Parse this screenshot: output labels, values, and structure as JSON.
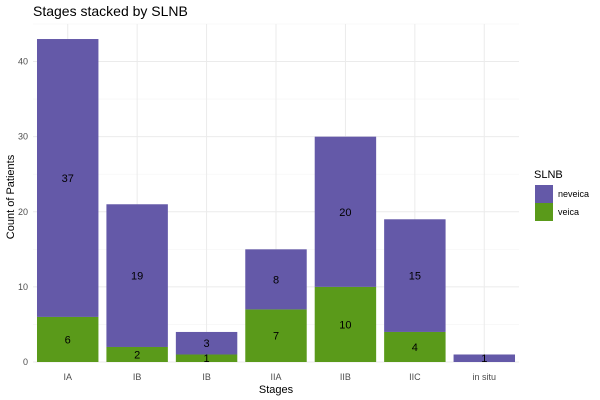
{
  "chart_data": {
    "type": "bar",
    "stacked": true,
    "title": "Stages stacked by SLNB",
    "xlabel": "Stages",
    "ylabel": "Count of Patients",
    "categories": [
      "IA",
      "IB",
      "IB",
      "IIA",
      "IIB",
      "IIC",
      "in situ"
    ],
    "series": [
      {
        "name": "veica",
        "color": "#5a9a1a",
        "values": [
          6,
          2,
          1,
          7,
          10,
          4,
          0
        ]
      },
      {
        "name": "neveica",
        "color": "#6459a8",
        "values": [
          37,
          19,
          3,
          8,
          20,
          15,
          1
        ]
      }
    ],
    "data_labels": {
      "veica": [
        "6",
        "2",
        "1",
        "7",
        "10",
        "4",
        ""
      ],
      "neveica": [
        "37",
        "19",
        "3",
        "8",
        "20",
        "15",
        "1"
      ]
    },
    "ylim": [
      0,
      45
    ],
    "yticks": [
      0,
      10,
      20,
      30,
      40
    ],
    "grid": true,
    "legend": {
      "title": "SLNB",
      "placement": "right",
      "entries": [
        "neveica",
        "veica"
      ]
    }
  }
}
